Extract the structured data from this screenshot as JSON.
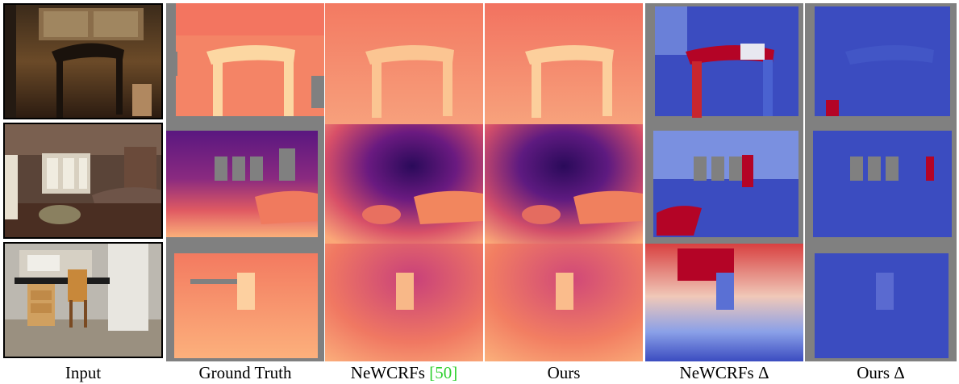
{
  "captions": {
    "input": "Input",
    "ground_truth": "Ground Truth",
    "newcrfs": "NeWCRFs",
    "newcrfs_ref": "[50]",
    "ours": "Ours",
    "newcrfs_delta": "NeWCRFs Δ",
    "ours_delta": "Ours Δ"
  },
  "colors": {
    "invalid_gray": "#808080",
    "depth_near": "#fdd3a0",
    "depth_mid": "#f06a4f",
    "depth_far": "#3b0f6f",
    "error_low": "#3b4cc0",
    "error_high": "#b40426"
  }
}
